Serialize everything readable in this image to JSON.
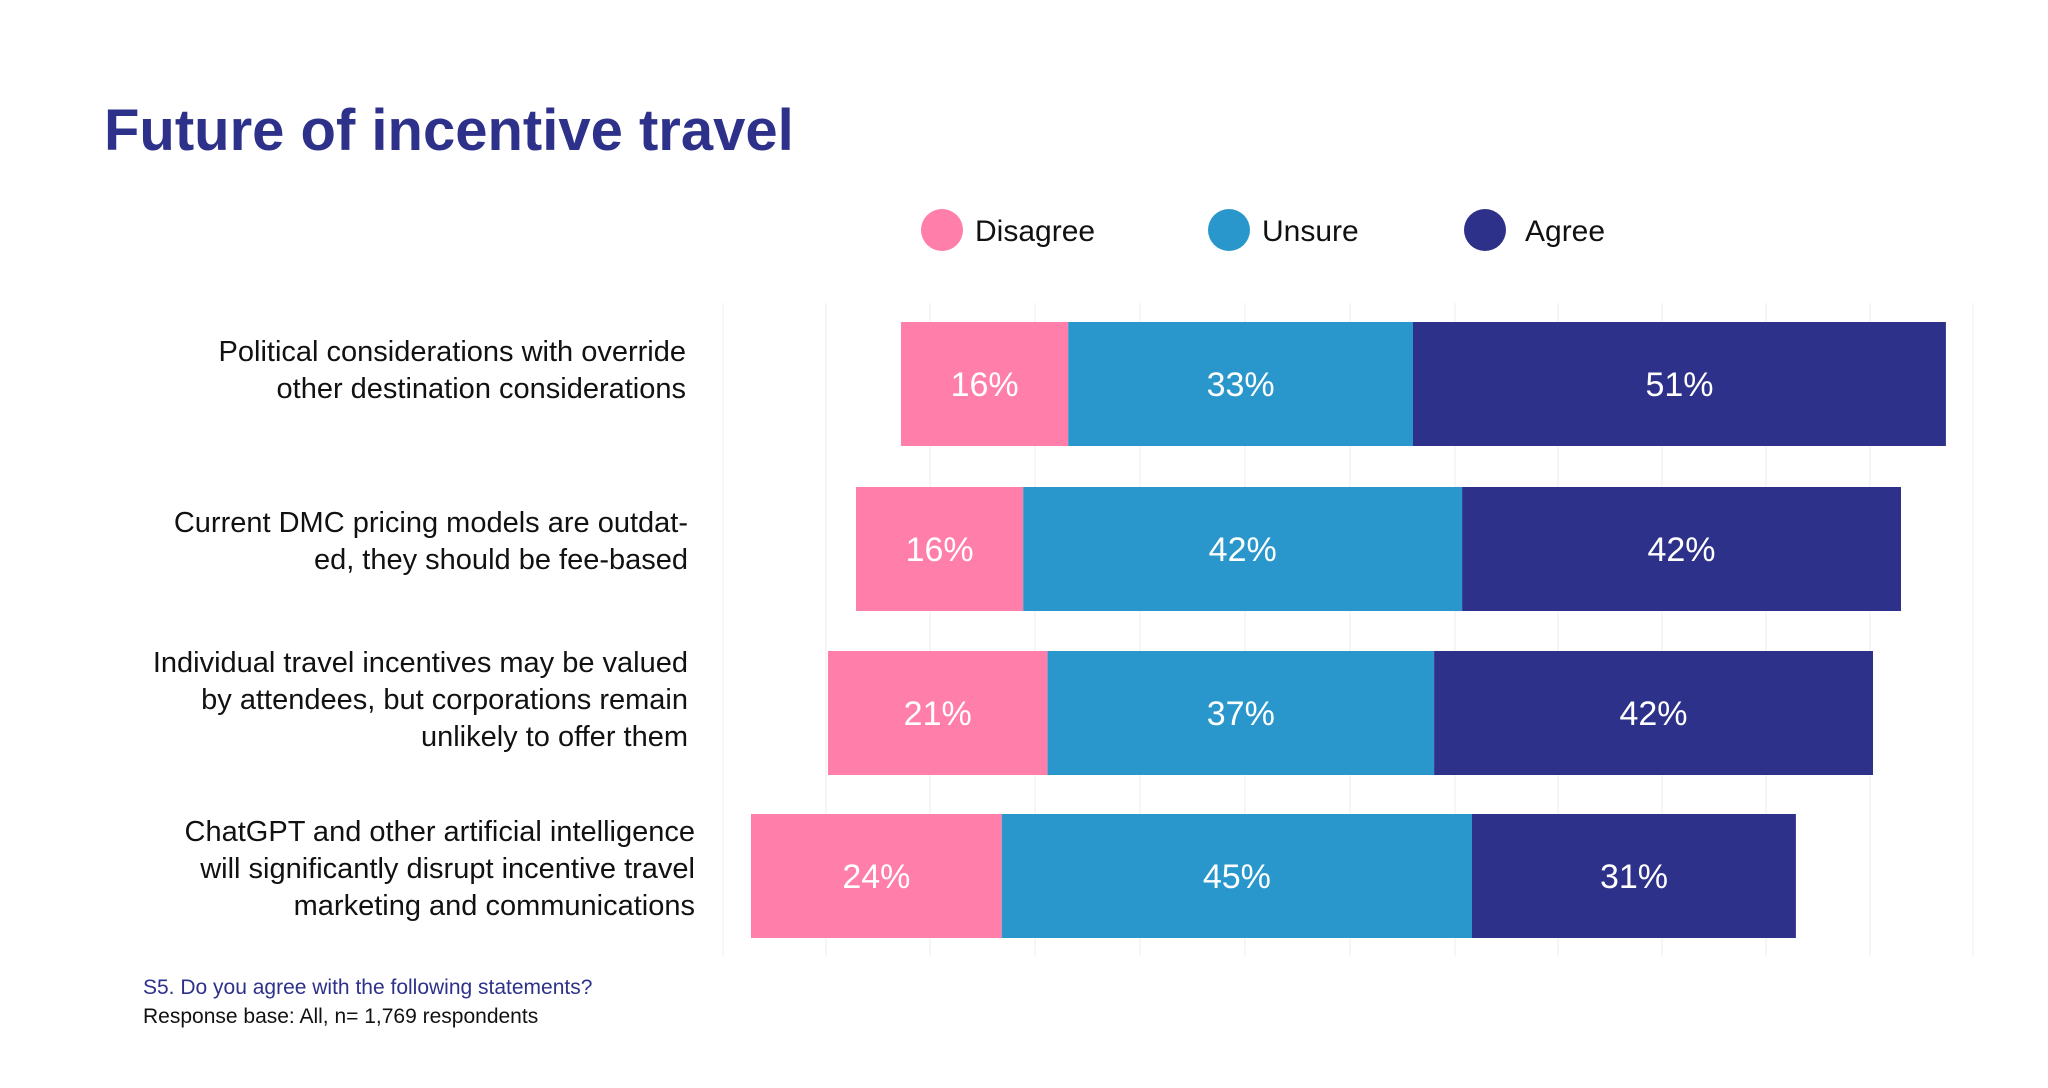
{
  "chart_data": {
    "type": "bar",
    "orientation": "horizontal",
    "stacked": true,
    "title": "Future of incentive travel",
    "categories": [
      [
        "Political considerations with override",
        "other destination considerations"
      ],
      [
        "Current DMC pricing models are outdat-",
        "ed, they should be fee-based"
      ],
      [
        "Individual travel incentives may be valued",
        "by attendees, but corporations remain",
        "unlikely to offer them"
      ],
      [
        "ChatGPT and other artificial intelligence",
        "will significantly disrupt incentive travel",
        "marketing and communications"
      ]
    ],
    "series": [
      {
        "name": "Disagree",
        "values": [
          16,
          16,
          21,
          24
        ],
        "labels": [
          "16%",
          "16%",
          "21%",
          "24%"
        ]
      },
      {
        "name": "Unsure",
        "values": [
          33,
          42,
          37,
          45
        ],
        "labels": [
          "33%",
          "42%",
          "37%",
          "45%"
        ]
      },
      {
        "name": "Agree",
        "values": [
          51,
          42,
          42,
          31
        ],
        "labels": [
          "51%",
          "42%",
          "42%",
          "31%"
        ]
      }
    ],
    "legend_position": "top",
    "grid": true,
    "notes": {
      "question": "S5. Do you agree with the following statements?",
      "base": "Response base: All, n= 1,769 respondents"
    }
  },
  "colors": {
    "title": "#2e3189",
    "question": "#2e3189",
    "Disagree": "#ff7eaa",
    "Unsure": "#2997cc",
    "Agree": "#2e3189"
  }
}
